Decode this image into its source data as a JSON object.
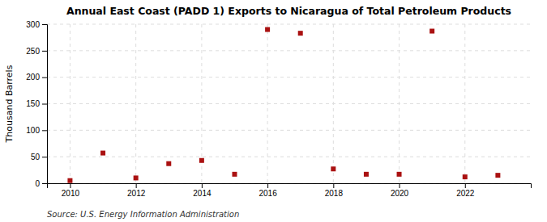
{
  "chart_data": {
    "type": "scatter",
    "title": "Annual East Coast (PADD 1) Exports to Nicaragua of Total Petroleum Products",
    "y_label": "Thousand Barrels",
    "source": "Source: U.S. Energy Information Administration",
    "x": [
      2010,
      2011,
      2012,
      2013,
      2014,
      2015,
      2016,
      2017,
      2018,
      2019,
      2020,
      2021,
      2022,
      2023
    ],
    "values": [
      5,
      57,
      10,
      37,
      43,
      17,
      290,
      283,
      27,
      17,
      17,
      287,
      12,
      15
    ],
    "xlim": [
      2009.3,
      2024.0
    ],
    "xticks": [
      2010,
      2012,
      2014,
      2016,
      2018,
      2020,
      2022
    ],
    "ylim": [
      0,
      300
    ],
    "yticks": [
      0,
      50,
      100,
      150,
      200,
      250,
      300
    ],
    "color": "#aa1111",
    "marker": "square",
    "grid": true
  }
}
